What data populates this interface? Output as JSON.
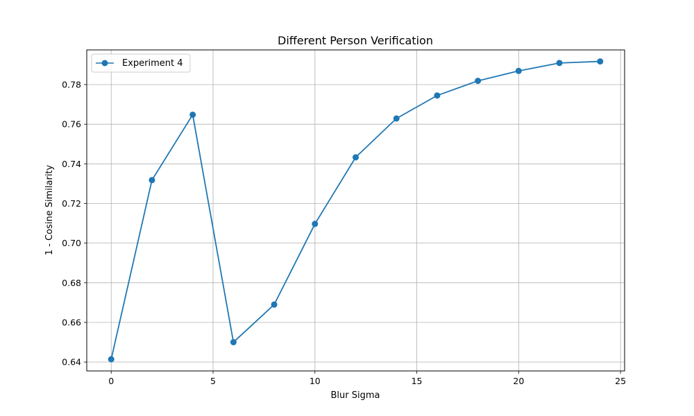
{
  "chart_data": {
    "type": "line",
    "title": "Different Person Verification",
    "xlabel": "Blur Sigma",
    "ylabel": "1 - Cosine Similarity",
    "xlim": [
      -1.2,
      25.2
    ],
    "ylim": [
      0.6355,
      0.7975
    ],
    "xticks": [
      0,
      5,
      10,
      15,
      20,
      25
    ],
    "yticks": [
      0.64,
      0.66,
      0.68,
      0.7,
      0.72,
      0.74,
      0.76,
      0.78
    ],
    "grid": true,
    "legend_position": "top-left",
    "series": [
      {
        "name": "Experiment 4",
        "color": "#1f77b4",
        "marker": "circle",
        "x": [
          0,
          2,
          4,
          6,
          8,
          10,
          12,
          14,
          16,
          18,
          20,
          22,
          24
        ],
        "y": [
          0.6414,
          0.7318,
          0.7648,
          0.65,
          0.669,
          0.7097,
          0.7433,
          0.7629,
          0.7745,
          0.7819,
          0.7869,
          0.7909,
          0.7917
        ]
      }
    ]
  }
}
